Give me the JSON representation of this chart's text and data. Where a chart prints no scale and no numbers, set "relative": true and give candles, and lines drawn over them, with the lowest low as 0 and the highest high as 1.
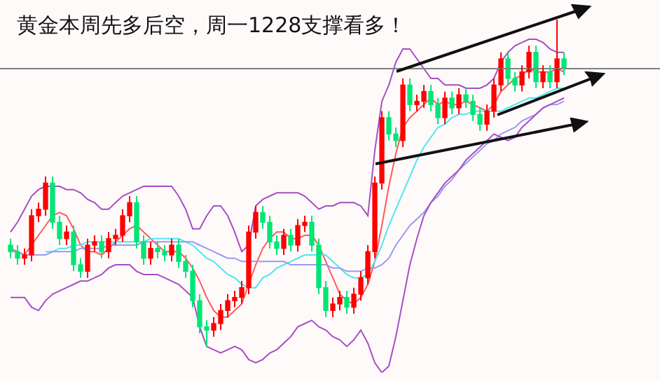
{
  "chart_data": {
    "type": "candlestick",
    "title": "黄金本周先多后空，周一1228支撑看多！",
    "relative": true,
    "categories": [
      null,
      null,
      null,
      null,
      null,
      null,
      null,
      null,
      null,
      null,
      null,
      null,
      null,
      null,
      null,
      null,
      null,
      null,
      null,
      null,
      null,
      null,
      null,
      null,
      null,
      null,
      null,
      null,
      null,
      null,
      null,
      null,
      null,
      null,
      null,
      null,
      null,
      null,
      null,
      null,
      null,
      null,
      null,
      null,
      null,
      null,
      null,
      null,
      null,
      null,
      null,
      null,
      null,
      null,
      null,
      null,
      null,
      null,
      null,
      null,
      null,
      null,
      null,
      null,
      null,
      null,
      null,
      null,
      null,
      null,
      null,
      null,
      null,
      null,
      null,
      null,
      null,
      null,
      null,
      null
    ],
    "ohlc": [
      [
        0.31,
        0.33,
        0.27,
        0.29
      ],
      [
        0.29,
        0.31,
        0.25,
        0.27
      ],
      [
        0.27,
        0.3,
        0.25,
        0.28
      ],
      [
        0.28,
        0.42,
        0.26,
        0.4
      ],
      [
        0.4,
        0.44,
        0.38,
        0.42
      ],
      [
        0.42,
        0.52,
        0.4,
        0.5
      ],
      [
        0.5,
        0.52,
        0.36,
        0.38
      ],
      [
        0.38,
        0.4,
        0.31,
        0.33
      ],
      [
        0.33,
        0.37,
        0.31,
        0.35
      ],
      [
        0.35,
        0.37,
        0.23,
        0.25
      ],
      [
        0.25,
        0.27,
        0.21,
        0.23
      ],
      [
        0.23,
        0.33,
        0.21,
        0.31
      ],
      [
        0.31,
        0.34,
        0.29,
        0.32
      ],
      [
        0.32,
        0.34,
        0.27,
        0.29
      ],
      [
        0.29,
        0.35,
        0.27,
        0.33
      ],
      [
        0.33,
        0.36,
        0.31,
        0.34
      ],
      [
        0.34,
        0.42,
        0.32,
        0.4
      ],
      [
        0.4,
        0.46,
        0.38,
        0.44
      ],
      [
        0.44,
        0.46,
        0.3,
        0.32
      ],
      [
        0.32,
        0.34,
        0.25,
        0.27
      ],
      [
        0.27,
        0.32,
        0.25,
        0.3
      ],
      [
        0.3,
        0.32,
        0.27,
        0.29
      ],
      [
        0.29,
        0.31,
        0.26,
        0.28
      ],
      [
        0.28,
        0.33,
        0.26,
        0.31
      ],
      [
        0.31,
        0.33,
        0.24,
        0.26
      ],
      [
        0.26,
        0.28,
        0.21,
        0.23
      ],
      [
        0.23,
        0.25,
        0.12,
        0.14
      ],
      [
        0.14,
        0.16,
        0.04,
        0.06
      ],
      [
        0.06,
        0.08,
        0,
        0.05
      ],
      [
        0.05,
        0.09,
        0.03,
        0.07
      ],
      [
        0.07,
        0.13,
        0.05,
        0.11
      ],
      [
        0.11,
        0.16,
        0.09,
        0.14
      ],
      [
        0.14,
        0.17,
        0.12,
        0.15
      ],
      [
        0.15,
        0.2,
        0.13,
        0.18
      ],
      [
        0.18,
        0.37,
        0.16,
        0.35
      ],
      [
        0.35,
        0.43,
        0.33,
        0.41
      ],
      [
        0.41,
        0.43,
        0.36,
        0.38
      ],
      [
        0.38,
        0.4,
        0.3,
        0.32
      ],
      [
        0.32,
        0.34,
        0.28,
        0.3
      ],
      [
        0.3,
        0.36,
        0.28,
        0.34
      ],
      [
        0.34,
        0.36,
        0.29,
        0.31
      ],
      [
        0.31,
        0.39,
        0.29,
        0.37
      ],
      [
        0.37,
        0.4,
        0.35,
        0.38
      ],
      [
        0.38,
        0.4,
        0.29,
        0.31
      ],
      [
        0.31,
        0.33,
        0.16,
        0.18
      ],
      [
        0.18,
        0.2,
        0.09,
        0.11
      ],
      [
        0.11,
        0.15,
        0.09,
        0.13
      ],
      [
        0.13,
        0.17,
        0.11,
        0.15
      ],
      [
        0.15,
        0.17,
        0.1,
        0.12
      ],
      [
        0.12,
        0.18,
        0.1,
        0.16
      ],
      [
        0.16,
        0.23,
        0.14,
        0.21
      ],
      [
        0.21,
        0.31,
        0.19,
        0.29
      ],
      [
        0.29,
        0.52,
        0.27,
        0.5
      ],
      [
        0.5,
        0.72,
        0.48,
        0.7
      ],
      [
        0.7,
        0.72,
        0.63,
        0.65
      ],
      [
        0.65,
        0.67,
        0.61,
        0.63
      ],
      [
        0.63,
        0.82,
        0.61,
        0.8
      ],
      [
        0.8,
        0.82,
        0.72,
        0.74
      ],
      [
        0.74,
        0.77,
        0.72,
        0.75
      ],
      [
        0.75,
        0.8,
        0.73,
        0.78
      ],
      [
        0.78,
        0.8,
        0.72,
        0.74
      ],
      [
        0.74,
        0.76,
        0.68,
        0.7
      ],
      [
        0.7,
        0.78,
        0.68,
        0.76
      ],
      [
        0.76,
        0.78,
        0.71,
        0.73
      ],
      [
        0.73,
        0.79,
        0.71,
        0.77
      ],
      [
        0.77,
        0.79,
        0.73,
        0.75
      ],
      [
        0.75,
        0.77,
        0.69,
        0.71
      ],
      [
        0.71,
        0.73,
        0.66,
        0.68
      ],
      [
        0.68,
        0.74,
        0.66,
        0.72
      ],
      [
        0.72,
        0.82,
        0.7,
        0.8
      ],
      [
        0.8,
        0.9,
        0.78,
        0.88
      ],
      [
        0.88,
        0.9,
        0.8,
        0.82
      ],
      [
        0.82,
        0.84,
        0.78,
        0.8
      ],
      [
        0.8,
        0.86,
        0.78,
        0.84
      ],
      [
        0.84,
        0.92,
        0.82,
        0.9
      ],
      [
        0.9,
        0.92,
        0.79,
        0.81
      ],
      [
        0.81,
        0.86,
        0.79,
        0.84
      ],
      [
        0.84,
        0.86,
        0.79,
        0.81
      ],
      [
        0.81,
        1,
        0.79,
        0.88
      ],
      [
        0.88,
        0.9,
        0.83,
        0.85
      ]
    ],
    "colors": [
      "#00e676",
      "#00e676",
      "#ff0000",
      "#ff0000",
      "#ff0000",
      "#ff0000",
      "#00e676",
      "#00e676",
      "#ff0000",
      "#00e676",
      "#00e676",
      "#ff0000",
      "#ff0000",
      "#00e676",
      "#ff0000",
      "#ff0000",
      "#ff0000",
      "#ff0000",
      "#00e676",
      "#00e676",
      "#ff0000",
      "#00e676",
      "#00e676",
      "#ff0000",
      "#00e676",
      "#00e676",
      "#00e676",
      "#00e676",
      "#00e676",
      "#ff0000",
      "#ff0000",
      "#ff0000",
      "#ff0000",
      "#ff0000",
      "#ff0000",
      "#ff0000",
      "#00e676",
      "#00e676",
      "#00e676",
      "#ff0000",
      "#00e676",
      "#ff0000",
      "#ff0000",
      "#00e676",
      "#00e676",
      "#00e676",
      "#ff0000",
      "#ff0000",
      "#00e676",
      "#ff0000",
      "#ff0000",
      "#ff0000",
      "#ff0000",
      "#ff0000",
      "#00e676",
      "#00e676",
      "#ff0000",
      "#00e676",
      "#ff0000",
      "#ff0000",
      "#00e676",
      "#00e676",
      "#ff0000",
      "#00e676",
      "#ff0000",
      "#00e676",
      "#00e676",
      "#00e676",
      "#ff0000",
      "#ff0000",
      "#ff0000",
      "#00e676",
      "#00e676",
      "#ff0000",
      "#ff0000",
      "#00e676",
      "#ff0000",
      "#00e676",
      "#ff0000",
      "#00e676"
    ],
    "series": [
      {
        "type": "line",
        "color": "#a64fc4",
        "values": [
          0.35,
          0.38,
          0.42,
          0.46,
          0.48,
          0.49,
          0.49,
          0.49,
          0.48,
          0.48,
          0.47,
          0.45,
          0.44,
          0.42,
          0.42,
          0.44,
          0.46,
          0.47,
          0.48,
          0.49,
          0.49,
          0.49,
          0.49,
          0.49,
          0.46,
          0.42,
          0.36,
          0.36,
          0.4,
          0.43,
          0.43,
          0.4,
          0.35,
          0.29,
          0.31,
          0.43,
          0.45,
          0.46,
          0.47,
          0.47,
          0.47,
          0.47,
          0.46,
          0.44,
          0.42,
          0.43,
          0.43,
          0.44,
          0.44,
          0.44,
          0.43,
          0.4,
          0.6,
          0.75,
          0.8,
          0.87,
          0.91,
          0.91,
          0.88,
          0.85,
          0.82,
          0.82,
          0.8,
          0.8,
          0.8,
          0.79,
          0.79,
          0.79,
          0.8,
          0.82,
          0.87,
          0.9,
          0.92,
          0.93,
          0.94,
          0.94,
          0.93,
          0.91,
          0.9,
          0.9
        ]
      },
      {
        "type": "line",
        "color": "#a64fc4",
        "values": [
          0.15,
          0.15,
          0.15,
          0.12,
          0.11,
          0.14,
          0.16,
          0.17,
          0.18,
          0.19,
          0.2,
          0.2,
          0.21,
          0.22,
          0.24,
          0.25,
          0.25,
          0.25,
          0.23,
          0.22,
          0.22,
          0.22,
          0.21,
          0.2,
          0.19,
          0.17,
          0.15,
          0.06,
          0.0,
          -0.01,
          -0.02,
          -0.01,
          0.0,
          -0.01,
          -0.04,
          -0.05,
          -0.04,
          -0.02,
          -0.01,
          0.01,
          0.03,
          0.06,
          0.07,
          0.08,
          0.06,
          0.05,
          0.03,
          0.02,
          0.0,
          0.02,
          0.05,
          0.01,
          -0.05,
          -0.08,
          -0.06,
          0.03,
          0.14,
          0.25,
          0.33,
          0.4,
          0.44,
          0.47,
          0.5,
          0.52,
          0.54,
          0.57,
          0.59,
          0.61,
          0.63,
          0.65,
          0.64,
          0.63,
          0.64,
          0.67,
          0.69,
          0.71,
          0.73,
          0.74,
          0.75,
          0.76
        ]
      },
      {
        "type": "line",
        "color": "#9a9af0",
        "values": [
          0.29,
          0.29,
          0.28,
          0.28,
          0.28,
          0.28,
          0.29,
          0.29,
          0.29,
          0.29,
          0.3,
          0.3,
          0.3,
          0.3,
          0.31,
          0.31,
          0.31,
          0.31,
          0.31,
          0.32,
          0.32,
          0.32,
          0.32,
          0.32,
          0.32,
          0.32,
          0.32,
          0.31,
          0.3,
          0.29,
          0.28,
          0.27,
          0.27,
          0.26,
          0.26,
          0.26,
          0.26,
          0.26,
          0.26,
          0.26,
          0.25,
          0.25,
          0.25,
          0.25,
          0.25,
          0.25,
          0.24,
          0.24,
          0.23,
          0.23,
          0.23,
          0.24,
          0.24,
          0.25,
          0.27,
          0.31,
          0.34,
          0.37,
          0.39,
          0.41,
          0.44,
          0.46,
          0.49,
          0.51,
          0.54,
          0.56,
          0.58,
          0.6,
          0.62,
          0.63,
          0.65,
          0.66,
          0.67,
          0.69,
          0.7,
          0.71,
          0.73,
          0.74,
          0.74,
          0.75
        ]
      },
      {
        "type": "line",
        "color": "#4ee6f0",
        "values": [
          null,
          null,
          null,
          null,
          null,
          0.29,
          0.29,
          0.3,
          0.3,
          0.31,
          0.31,
          0.32,
          0.32,
          0.32,
          0.32,
          0.32,
          0.32,
          0.32,
          0.32,
          0.32,
          0.33,
          0.33,
          0.33,
          0.33,
          0.33,
          0.32,
          0.31,
          0.29,
          0.27,
          0.26,
          0.24,
          0.22,
          0.21,
          0.19,
          0.18,
          0.18,
          0.21,
          0.22,
          0.24,
          0.25,
          0.26,
          0.27,
          0.28,
          0.28,
          0.28,
          0.28,
          0.26,
          0.24,
          0.22,
          0.21,
          0.21,
          0.22,
          0.26,
          0.31,
          0.37,
          0.42,
          0.47,
          0.52,
          0.57,
          0.61,
          0.64,
          0.67,
          0.68,
          0.7,
          0.71,
          0.71,
          0.72,
          0.72,
          0.72,
          0.72,
          0.72,
          0.73,
          0.74,
          0.75,
          0.76,
          0.76,
          0.77,
          0.78,
          0.79,
          0.79
        ]
      },
      {
        "type": "line",
        "color": "#ff5a5a",
        "values": [
          0.3,
          0.29,
          0.28,
          0.31,
          0.34,
          0.37,
          0.4,
          0.41,
          0.4,
          0.36,
          0.31,
          0.29,
          0.29,
          0.28,
          0.3,
          0.32,
          0.34,
          0.36,
          0.37,
          0.35,
          0.33,
          0.31,
          0.29,
          0.29,
          0.29,
          0.27,
          0.24,
          0.2,
          0.15,
          0.11,
          0.09,
          0.09,
          0.11,
          0.13,
          0.19,
          0.25,
          0.3,
          0.33,
          0.35,
          0.35,
          0.33,
          0.33,
          0.34,
          0.34,
          0.31,
          0.26,
          0.21,
          0.16,
          0.14,
          0.13,
          0.15,
          0.19,
          0.26,
          0.37,
          0.49,
          0.59,
          0.67,
          0.7,
          0.72,
          0.74,
          0.76,
          0.74,
          0.75,
          0.74,
          0.74,
          0.75,
          0.74,
          0.73,
          0.72,
          0.74,
          0.78,
          0.8,
          0.82,
          0.83,
          0.85,
          0.84,
          0.84,
          0.84,
          0.85,
          0.84
        ]
      }
    ],
    "ref_lines": [
      {
        "axis": "y",
        "value": 0.85,
        "color": "#808080"
      }
    ]
  }
}
